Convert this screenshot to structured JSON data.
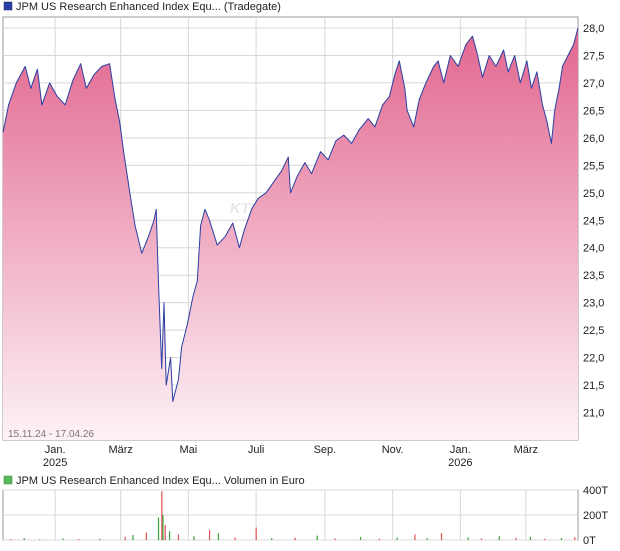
{
  "price_chart": {
    "legend": "JPM US Research Enhanced Index Equ... (Tradegate)",
    "date_range": "15.11.24 - 17.04.26",
    "watermark": "KTIE",
    "colors": {
      "line": "#2a3fa3",
      "fill_top": "#e2668f",
      "fill_bottom": "#fdf2f6",
      "legend_box": "#2a3fa3"
    }
  },
  "volume_chart": {
    "legend": "JPM US Research Enhanced Index Equ... Volumen in Euro",
    "colors": {
      "legend_box": "#5cb85c",
      "bar_buy": "#3aa53a",
      "bar_sell": "#e05050"
    }
  },
  "chart_data": [
    {
      "type": "area",
      "ylim": [
        20.5,
        28.2
      ],
      "yticks": [
        21.0,
        21.5,
        22.0,
        22.5,
        23.0,
        23.5,
        24.0,
        24.5,
        25.0,
        25.5,
        26.0,
        26.5,
        27.0,
        27.5,
        28.0
      ],
      "ytick_labels": [
        "21,0",
        "21,5",
        "22,0",
        "22,5",
        "23,0",
        "23,5",
        "24,0",
        "24,5",
        "25,0",
        "25,5",
        "26,0",
        "26,5",
        "27,0",
        "27,5",
        "28,0"
      ],
      "xlim": [
        "2024-11-15",
        "2026-04-17"
      ],
      "xticks": [
        {
          "date": "2025-01-01",
          "label": "Jan.",
          "year": "2025"
        },
        {
          "date": "2025-03-01",
          "label": "März",
          "year": ""
        },
        {
          "date": "2025-05-01",
          "label": "Mai",
          "year": ""
        },
        {
          "date": "2025-07-01",
          "label": "Juli",
          "year": ""
        },
        {
          "date": "2025-09-01",
          "label": "Sep.",
          "year": ""
        },
        {
          "date": "2025-11-01",
          "label": "Nov.",
          "year": ""
        },
        {
          "date": "2026-01-01",
          "label": "Jan.",
          "year": "2026"
        },
        {
          "date": "2026-03-01",
          "label": "März",
          "year": ""
        }
      ],
      "grid": true,
      "points": [
        [
          "2024-11-15",
          26.1
        ],
        [
          "2024-11-20",
          26.6
        ],
        [
          "2024-11-27",
          27.0
        ],
        [
          "2024-12-05",
          27.3
        ],
        [
          "2024-12-10",
          26.9
        ],
        [
          "2024-12-16",
          27.25
        ],
        [
          "2024-12-20",
          26.6
        ],
        [
          "2024-12-27",
          27.0
        ],
        [
          "2025-01-03",
          26.75
        ],
        [
          "2025-01-10",
          26.6
        ],
        [
          "2025-01-17",
          27.05
        ],
        [
          "2025-01-24",
          27.35
        ],
        [
          "2025-01-29",
          26.9
        ],
        [
          "2025-02-05",
          27.15
        ],
        [
          "2025-02-12",
          27.3
        ],
        [
          "2025-02-19",
          27.35
        ],
        [
          "2025-02-24",
          26.7
        ],
        [
          "2025-02-28",
          26.3
        ],
        [
          "2025-03-04",
          25.7
        ],
        [
          "2025-03-10",
          24.9
        ],
        [
          "2025-03-14",
          24.4
        ],
        [
          "2025-03-20",
          23.9
        ],
        [
          "2025-03-26",
          24.2
        ],
        [
          "2025-03-31",
          24.5
        ],
        [
          "2025-04-02",
          24.7
        ],
        [
          "2025-04-04",
          23.4
        ],
        [
          "2025-04-07",
          21.8
        ],
        [
          "2025-04-09",
          23.0
        ],
        [
          "2025-04-11",
          21.5
        ],
        [
          "2025-04-15",
          22.0
        ],
        [
          "2025-04-17",
          21.2
        ],
        [
          "2025-04-22",
          21.6
        ],
        [
          "2025-04-25",
          22.2
        ],
        [
          "2025-04-30",
          22.6
        ],
        [
          "2025-05-05",
          23.1
        ],
        [
          "2025-05-09",
          23.4
        ],
        [
          "2025-05-12",
          24.4
        ],
        [
          "2025-05-16",
          24.7
        ],
        [
          "2025-05-20",
          24.5
        ],
        [
          "2025-05-27",
          24.05
        ],
        [
          "2025-06-03",
          24.2
        ],
        [
          "2025-06-10",
          24.45
        ],
        [
          "2025-06-16",
          24.0
        ],
        [
          "2025-06-20",
          24.3
        ],
        [
          "2025-06-27",
          24.7
        ],
        [
          "2025-07-03",
          24.9
        ],
        [
          "2025-07-10",
          25.0
        ],
        [
          "2025-07-17",
          25.2
        ],
        [
          "2025-07-24",
          25.4
        ],
        [
          "2025-07-30",
          25.65
        ],
        [
          "2025-08-01",
          25.0
        ],
        [
          "2025-08-07",
          25.3
        ],
        [
          "2025-08-14",
          25.55
        ],
        [
          "2025-08-20",
          25.35
        ],
        [
          "2025-08-28",
          25.75
        ],
        [
          "2025-09-04",
          25.6
        ],
        [
          "2025-09-11",
          25.95
        ],
        [
          "2025-09-18",
          26.05
        ],
        [
          "2025-09-25",
          25.9
        ],
        [
          "2025-10-02",
          26.15
        ],
        [
          "2025-10-10",
          26.35
        ],
        [
          "2025-10-16",
          26.2
        ],
        [
          "2025-10-23",
          26.6
        ],
        [
          "2025-10-29",
          26.75
        ],
        [
          "2025-11-03",
          27.15
        ],
        [
          "2025-11-07",
          27.4
        ],
        [
          "2025-11-12",
          26.9
        ],
        [
          "2025-11-14",
          26.5
        ],
        [
          "2025-11-20",
          26.2
        ],
        [
          "2025-11-25",
          26.7
        ],
        [
          "2025-12-01",
          27.0
        ],
        [
          "2025-12-08",
          27.3
        ],
        [
          "2025-12-12",
          27.4
        ],
        [
          "2025-12-17",
          27.0
        ],
        [
          "2025-12-23",
          27.5
        ],
        [
          "2025-12-30",
          27.3
        ],
        [
          "2026-01-06",
          27.7
        ],
        [
          "2026-01-12",
          27.85
        ],
        [
          "2026-01-16",
          27.55
        ],
        [
          "2026-01-21",
          27.1
        ],
        [
          "2026-01-27",
          27.5
        ],
        [
          "2026-02-02",
          27.3
        ],
        [
          "2026-02-09",
          27.6
        ],
        [
          "2026-02-13",
          27.2
        ],
        [
          "2026-02-19",
          27.5
        ],
        [
          "2026-02-24",
          27.0
        ],
        [
          "2026-03-02",
          27.4
        ],
        [
          "2026-03-06",
          26.9
        ],
        [
          "2026-03-11",
          27.2
        ],
        [
          "2026-03-16",
          26.6
        ],
        [
          "2026-03-20",
          26.3
        ],
        [
          "2026-03-24",
          25.9
        ],
        [
          "2026-03-27",
          26.5
        ],
        [
          "2026-03-31",
          26.9
        ],
        [
          "2026-04-03",
          27.3
        ],
        [
          "2026-04-08",
          27.5
        ],
        [
          "2026-04-13",
          27.7
        ],
        [
          "2026-04-17",
          28.0
        ]
      ]
    },
    {
      "type": "bar",
      "ylim": [
        0,
        400
      ],
      "yticks": [
        0,
        200,
        400
      ],
      "ytick_labels": [
        "0T",
        "200T",
        "400T"
      ],
      "grid": true,
      "bars": [
        [
          "2024-11-22",
          8,
          "sell"
        ],
        [
          "2024-12-04",
          15,
          "buy"
        ],
        [
          "2024-12-18",
          6,
          "sell"
        ],
        [
          "2025-01-08",
          12,
          "buy"
        ],
        [
          "2025-01-22",
          7,
          "sell"
        ],
        [
          "2025-02-10",
          10,
          "buy"
        ],
        [
          "2025-03-05",
          25,
          "sell"
        ],
        [
          "2025-03-12",
          40,
          "buy"
        ],
        [
          "2025-03-24",
          60,
          "sell"
        ],
        [
          "2025-04-04",
          180,
          "buy"
        ],
        [
          "2025-04-07",
          390,
          "sell"
        ],
        [
          "2025-04-08",
          200,
          "buy"
        ],
        [
          "2025-04-10",
          120,
          "sell"
        ],
        [
          "2025-04-14",
          70,
          "buy"
        ],
        [
          "2025-04-22",
          45,
          "sell"
        ],
        [
          "2025-05-06",
          30,
          "buy"
        ],
        [
          "2025-05-20",
          80,
          "sell"
        ],
        [
          "2025-05-28",
          55,
          "buy"
        ],
        [
          "2025-06-12",
          20,
          "sell"
        ],
        [
          "2025-07-01",
          100,
          "sell"
        ],
        [
          "2025-07-15",
          15,
          "buy"
        ],
        [
          "2025-08-05",
          18,
          "sell"
        ],
        [
          "2025-08-25",
          35,
          "buy"
        ],
        [
          "2025-09-10",
          12,
          "sell"
        ],
        [
          "2025-10-03",
          25,
          "buy"
        ],
        [
          "2025-10-20",
          10,
          "sell"
        ],
        [
          "2025-11-05",
          20,
          "buy"
        ],
        [
          "2025-11-21",
          45,
          "sell"
        ],
        [
          "2025-12-02",
          15,
          "buy"
        ],
        [
          "2025-12-15",
          55,
          "sell"
        ],
        [
          "2026-01-08",
          20,
          "buy"
        ],
        [
          "2026-01-20",
          12,
          "sell"
        ],
        [
          "2026-02-05",
          30,
          "buy"
        ],
        [
          "2026-02-20",
          18,
          "sell"
        ],
        [
          "2026-03-05",
          25,
          "buy"
        ],
        [
          "2026-03-18",
          10,
          "sell"
        ],
        [
          "2026-04-02",
          15,
          "buy"
        ],
        [
          "2026-04-14",
          22,
          "sell"
        ]
      ]
    }
  ]
}
